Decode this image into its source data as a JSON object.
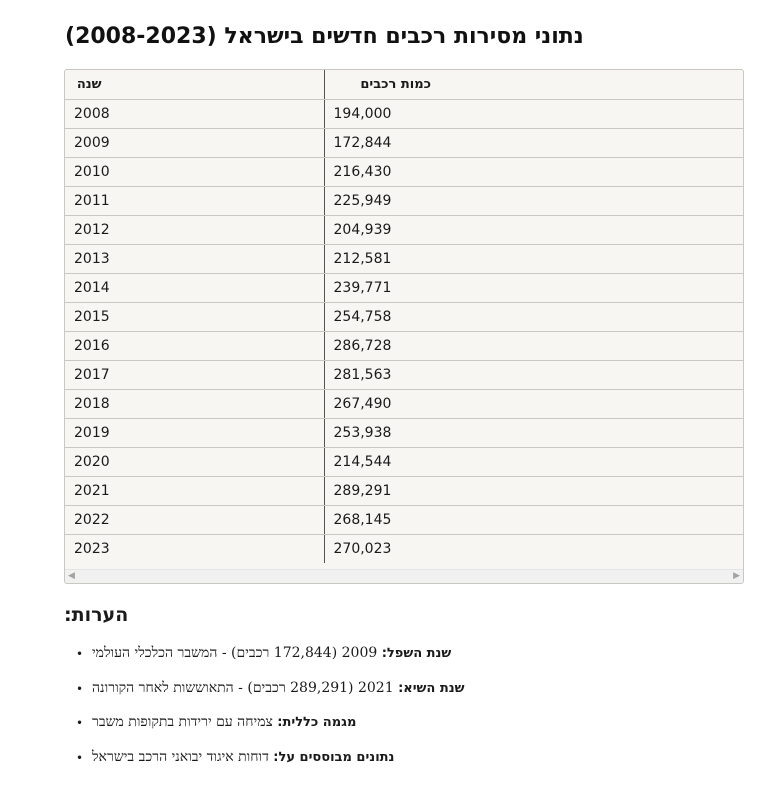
{
  "page": {
    "title": "נתוני מסירות רכבים חדשים בישראל (2008-2023)"
  },
  "table": {
    "headers": {
      "year": "שנה",
      "count": "כמות רכבים"
    },
    "rows": [
      {
        "year": "2008",
        "count": "194,000"
      },
      {
        "year": "2009",
        "count": "172,844"
      },
      {
        "year": "2010",
        "count": "216,430"
      },
      {
        "year": "2011",
        "count": "225,949"
      },
      {
        "year": "2012",
        "count": "204,939"
      },
      {
        "year": "2013",
        "count": "212,581"
      },
      {
        "year": "2014",
        "count": "239,771"
      },
      {
        "year": "2015",
        "count": "254,758"
      },
      {
        "year": "2016",
        "count": "286,728"
      },
      {
        "year": "2017",
        "count": "281,563"
      },
      {
        "year": "2018",
        "count": "267,490"
      },
      {
        "year": "2019",
        "count": "253,938"
      },
      {
        "year": "2020",
        "count": "214,544"
      },
      {
        "year": "2021",
        "count": "289,291"
      },
      {
        "year": "2022",
        "count": "268,145"
      },
      {
        "year": "2023",
        "count": "270,023"
      }
    ],
    "scroll_left_icon": "◀",
    "scroll_right_icon": "▶"
  },
  "notes": {
    "heading": "הערות:",
    "bullet": "•",
    "items": [
      {
        "label": "שנת השפל:",
        "text": " 2009 (172,844 רכבים) - המשבר הכלכלי העולמי"
      },
      {
        "label": "שנת השיא:",
        "text": " 2021 (289,291 רכבים) - התאוששות לאחר הקורונה"
      },
      {
        "label": "מגמה כללית:",
        "text": " צמיחה עם ירידות בתקופות משבר"
      },
      {
        "label": "נתונים מבוססים על:",
        "text": " דוחות איגוד יבואני הרכב בישראל"
      }
    ]
  }
}
